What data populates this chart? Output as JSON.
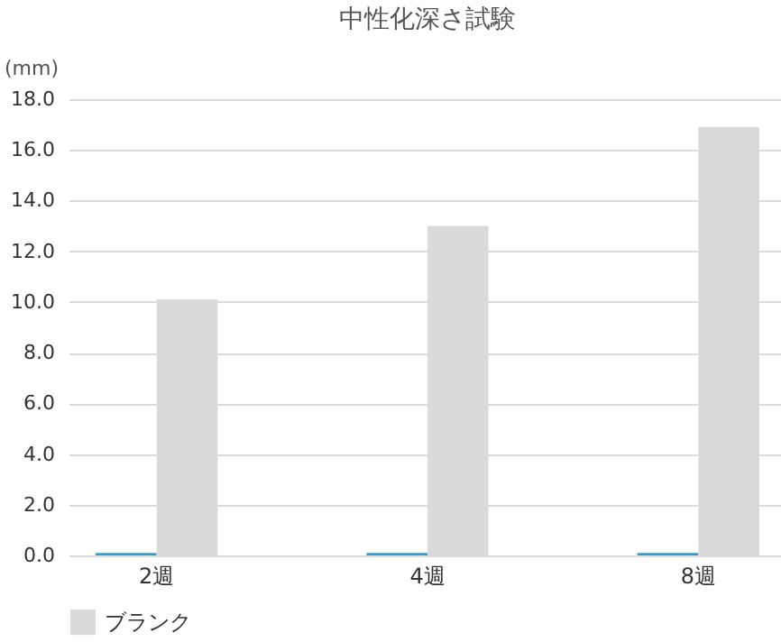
{
  "chart_data": {
    "type": "bar",
    "title": "中性化深さ試験",
    "ylabel": "(mm)",
    "categories": [
      "2週",
      "4週",
      "8週"
    ],
    "series": [
      {
        "color": "#3a9ac8",
        "values": [
          0.1,
          0.1,
          0.1
        ]
      },
      {
        "name": "ブランク",
        "color": "#dadada",
        "values": [
          10.1,
          13.0,
          16.9
        ]
      }
    ],
    "ylim": [
      0,
      18
    ],
    "yticks": [
      {
        "value": 0,
        "label": "0.0"
      },
      {
        "value": 2,
        "label": "2.0"
      },
      {
        "value": 4,
        "label": "4.0"
      },
      {
        "value": 6,
        "label": "6.0"
      },
      {
        "value": 8,
        "label": "8.0"
      },
      {
        "value": 10,
        "label": "10.0"
      },
      {
        "value": 12,
        "label": "12.0"
      },
      {
        "value": 14,
        "label": "14.0"
      },
      {
        "value": 16,
        "label": "16.0"
      },
      {
        "value": 18,
        "label": "18.0"
      }
    ],
    "grid": "y",
    "legend": "bottom"
  }
}
